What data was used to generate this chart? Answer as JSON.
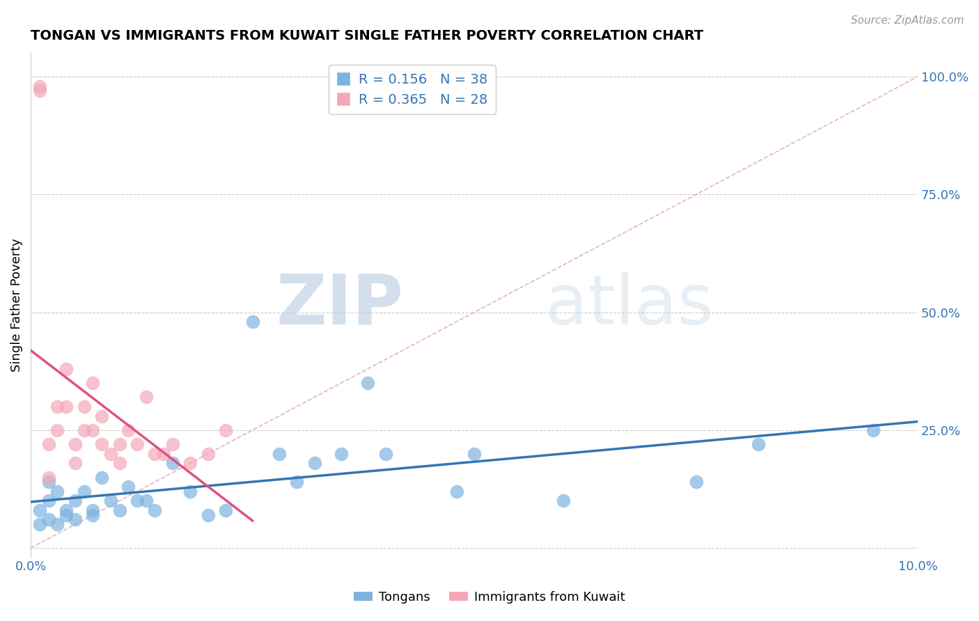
{
  "title": "TONGAN VS IMMIGRANTS FROM KUWAIT SINGLE FATHER POVERTY CORRELATION CHART",
  "source": "Source: ZipAtlas.com",
  "xlabel": "",
  "ylabel": "Single Father Poverty",
  "legend_labels": [
    "Tongans",
    "Immigrants from Kuwait"
  ],
  "r_tongan": 0.156,
  "n_tongan": 38,
  "r_kuwait": 0.365,
  "n_kuwait": 28,
  "xlim": [
    0.0,
    0.1
  ],
  "ylim": [
    -0.02,
    1.05
  ],
  "xticks": [
    0.0,
    0.025,
    0.05,
    0.075,
    0.1
  ],
  "xtick_labels": [
    "0.0%",
    "",
    "",
    "",
    "10.0%"
  ],
  "ytick_positions": [
    0.0,
    0.25,
    0.5,
    0.75,
    1.0
  ],
  "ytick_labels": [
    "",
    "25.0%",
    "50.0%",
    "75.0%",
    "100.0%"
  ],
  "color_tongan": "#7EB3E0",
  "color_kuwait": "#F4A7B9",
  "line_color_tongan": "#3575B5",
  "line_color_kuwait": "#E05080",
  "diagonal_color": "#DDA0AA",
  "watermark_zip": "ZIP",
  "watermark_atlas": "atlas",
  "tongan_x": [
    0.001,
    0.001,
    0.002,
    0.002,
    0.002,
    0.003,
    0.003,
    0.004,
    0.004,
    0.005,
    0.005,
    0.006,
    0.007,
    0.007,
    0.008,
    0.009,
    0.01,
    0.011,
    0.012,
    0.013,
    0.014,
    0.016,
    0.018,
    0.02,
    0.022,
    0.025,
    0.028,
    0.03,
    0.032,
    0.035,
    0.038,
    0.04,
    0.048,
    0.05,
    0.06,
    0.075,
    0.082,
    0.095
  ],
  "tongan_y": [
    0.05,
    0.08,
    0.06,
    0.1,
    0.14,
    0.05,
    0.12,
    0.07,
    0.08,
    0.1,
    0.06,
    0.12,
    0.08,
    0.07,
    0.15,
    0.1,
    0.08,
    0.13,
    0.1,
    0.1,
    0.08,
    0.18,
    0.12,
    0.07,
    0.08,
    0.48,
    0.2,
    0.14,
    0.18,
    0.2,
    0.35,
    0.2,
    0.12,
    0.2,
    0.1,
    0.14,
    0.22,
    0.25
  ],
  "kuwait_x": [
    0.001,
    0.001,
    0.002,
    0.002,
    0.003,
    0.003,
    0.004,
    0.004,
    0.005,
    0.005,
    0.006,
    0.006,
    0.007,
    0.007,
    0.008,
    0.008,
    0.009,
    0.01,
    0.01,
    0.011,
    0.012,
    0.013,
    0.014,
    0.015,
    0.016,
    0.018,
    0.02,
    0.022
  ],
  "kuwait_y": [
    0.97,
    0.98,
    0.22,
    0.15,
    0.3,
    0.25,
    0.38,
    0.3,
    0.18,
    0.22,
    0.25,
    0.3,
    0.35,
    0.25,
    0.22,
    0.28,
    0.2,
    0.22,
    0.18,
    0.25,
    0.22,
    0.32,
    0.2,
    0.2,
    0.22,
    0.18,
    0.2,
    0.25
  ]
}
